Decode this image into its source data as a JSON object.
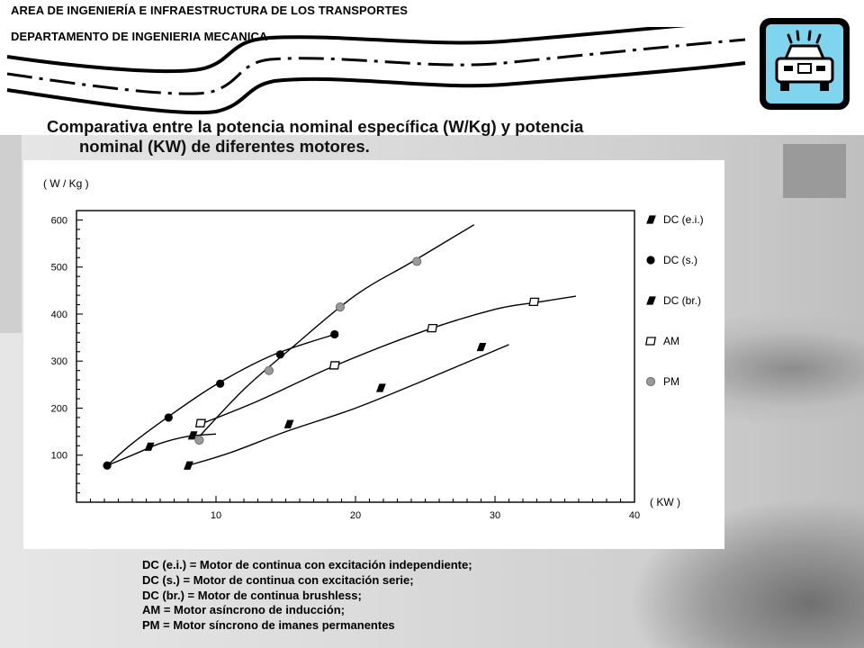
{
  "header": {
    "line1": "AREA DE INGENIERÍA E INFRAESTRUCTURA DE LOS TRANSPORTES",
    "line2": "DEPARTAMENTO DE INGENIERIA MECANICA",
    "logo_icon": "car-icon",
    "road_graphic": "road-icon"
  },
  "slide": {
    "title_line1": "Comparativa entre la potencia nominal específica (W/Kg) y potencia",
    "title_line2": "nominal (KW) de diferentes motores."
  },
  "chart_data": {
    "type": "line",
    "ylabel": "( W / Kg )",
    "xlabel": "( KW )",
    "xlim": [
      0,
      40
    ],
    "ylim": [
      0,
      620
    ],
    "x_ticks": [
      10,
      20,
      30,
      40
    ],
    "y_ticks": [
      100,
      200,
      300,
      400,
      500,
      600
    ],
    "grid": false,
    "legend_position": "right",
    "series": [
      {
        "name": "DC (e.i.)",
        "marker": "parallelogram-black",
        "curve": [
          [
            8,
            78
          ],
          [
            11,
            105
          ],
          [
            15,
            150
          ],
          [
            20,
            200
          ],
          [
            25,
            260
          ],
          [
            29,
            310
          ],
          [
            31,
            335
          ]
        ],
        "markers": [
          [
            8,
            78
          ],
          [
            15.2,
            166
          ],
          [
            21.8,
            243
          ],
          [
            29,
            330
          ]
        ]
      },
      {
        "name": "DC (s.)",
        "marker": "circle-black",
        "curve": [
          [
            2.2,
            78
          ],
          [
            4,
            125
          ],
          [
            6.5,
            180
          ],
          [
            10,
            250
          ],
          [
            14,
            312
          ],
          [
            18.3,
            355
          ]
        ],
        "markers": [
          [
            2.2,
            78
          ],
          [
            6.6,
            180
          ],
          [
            10.3,
            252
          ],
          [
            14.6,
            314
          ],
          [
            18.5,
            357
          ]
        ]
      },
      {
        "name": "DC (br.)",
        "marker": "parallelogram-black",
        "curve": [
          [
            2.2,
            78
          ],
          [
            4,
            100
          ],
          [
            6,
            125
          ],
          [
            8,
            140
          ],
          [
            10,
            145
          ]
        ],
        "markers": [
          [
            5.2,
            118
          ],
          [
            8.3,
            142
          ]
        ]
      },
      {
        "name": "AM",
        "marker": "square-open",
        "curve": [
          [
            8.8,
            165
          ],
          [
            13,
            215
          ],
          [
            18.5,
            290
          ],
          [
            25,
            365
          ],
          [
            30,
            410
          ],
          [
            33,
            425
          ],
          [
            35.8,
            438
          ]
        ],
        "markers": [
          [
            8.9,
            168
          ],
          [
            18.5,
            291
          ],
          [
            25.5,
            370
          ],
          [
            32.8,
            426
          ]
        ]
      },
      {
        "name": "PM",
        "marker": "circle-gray",
        "curve": [
          [
            8.5,
            130
          ],
          [
            12,
            240
          ],
          [
            15.5,
            330
          ],
          [
            20,
            440
          ],
          [
            24,
            510
          ],
          [
            28.5,
            590
          ]
        ],
        "markers": [
          [
            8.8,
            132
          ],
          [
            13.8,
            280
          ],
          [
            18.9,
            415
          ],
          [
            24.4,
            512
          ]
        ]
      }
    ]
  },
  "legend_text": {
    "line1": "DC (e.i.)  = Motor de continua con excitación independiente;",
    "line2": "DC (s.) = Motor de continua con excitación serie;",
    "line3": "DC (br.) = Motor de continua brushless;",
    "line4": "AM = Motor asíncrono de inducción;",
    "line5": "PM = Motor síncrono de imanes permanentes"
  }
}
